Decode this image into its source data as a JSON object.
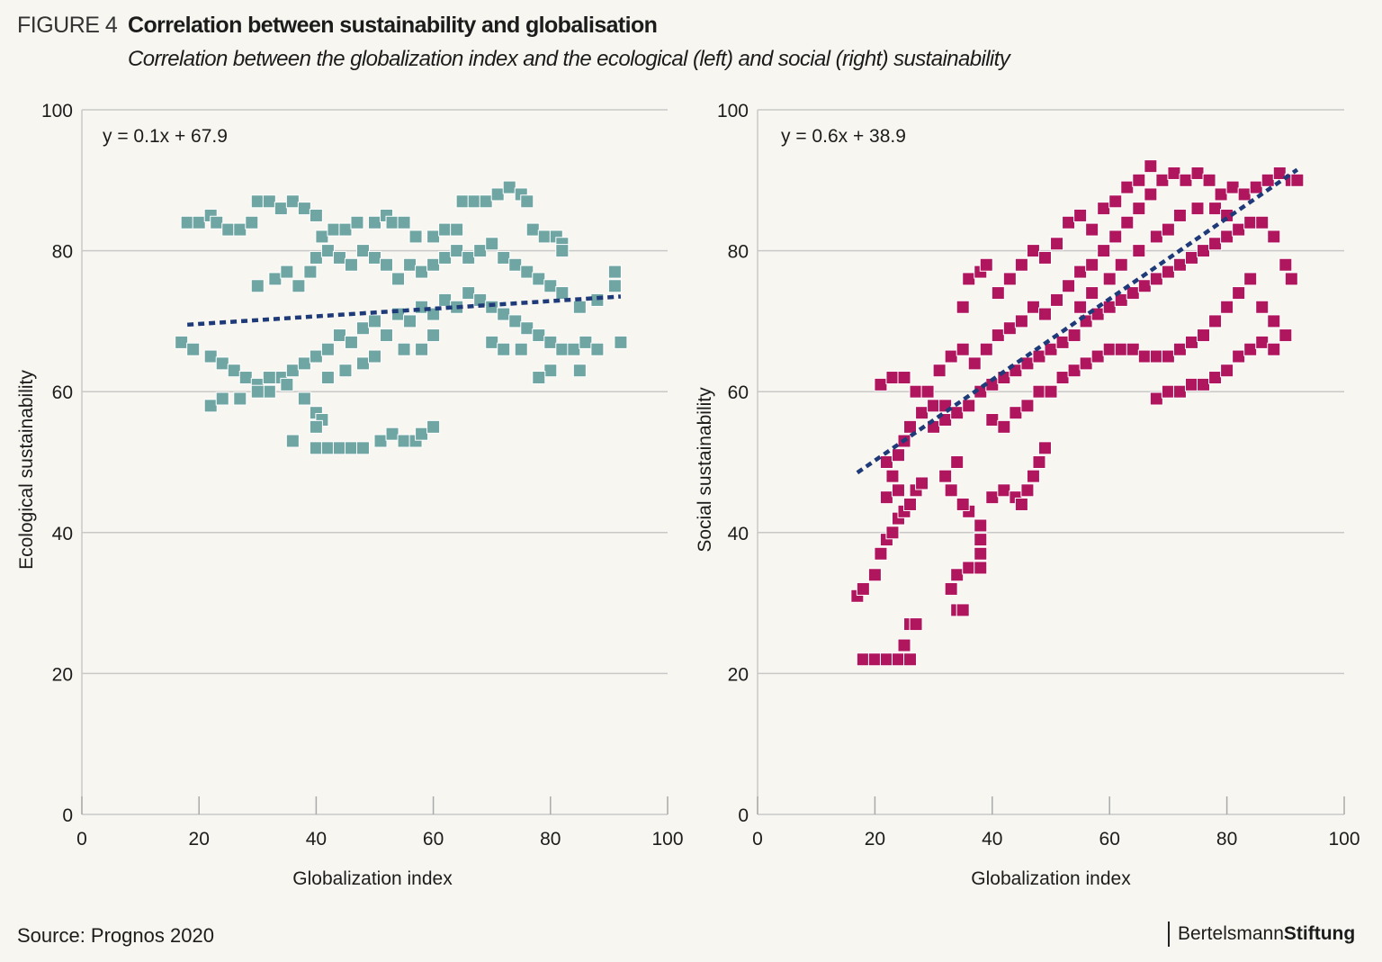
{
  "header": {
    "figure_label": "FIGURE 4",
    "title": "Correlation between sustainability and globalisation",
    "subtitle": "Correlation between the globalization index and the ecological (left) and social (right) sustainability"
  },
  "footer": {
    "source": "Source: Prognos 2020",
    "logo_regular": "Bertelsmann",
    "logo_bold": "Stiftung"
  },
  "colors": {
    "ecological": "#6fa6a3",
    "social": "#b0165e",
    "trend": "#1f3a78",
    "grid": "#c8c8c8"
  },
  "chart_data": [
    {
      "type": "scatter",
      "xlabel": "Globalization index",
      "ylabel": "Ecological sustainability",
      "xlim": [
        0,
        100
      ],
      "ylim": [
        0,
        100
      ],
      "xticks": [
        "0",
        "20",
        "40",
        "60",
        "80",
        "100"
      ],
      "yticks": [
        "0",
        "20",
        "40",
        "60",
        "80",
        "100"
      ],
      "grid": "horizontal",
      "equation": "y = 0.1x + 67.9",
      "trend_line": {
        "x": [
          18,
          92
        ],
        "y": [
          69.5,
          73.5
        ]
      },
      "points": [
        [
          18,
          84
        ],
        [
          20,
          84
        ],
        [
          22,
          85
        ],
        [
          23,
          84
        ],
        [
          25,
          83
        ],
        [
          27,
          83
        ],
        [
          29,
          84
        ],
        [
          30,
          87
        ],
        [
          32,
          87
        ],
        [
          34,
          86
        ],
        [
          36,
          87
        ],
        [
          38,
          86
        ],
        [
          40,
          85
        ],
        [
          41,
          82
        ],
        [
          43,
          83
        ],
        [
          45,
          83
        ],
        [
          47,
          84
        ],
        [
          50,
          84
        ],
        [
          52,
          85
        ],
        [
          53,
          84
        ],
        [
          55,
          84
        ],
        [
          57,
          82
        ],
        [
          60,
          82
        ],
        [
          62,
          83
        ],
        [
          64,
          83
        ],
        [
          65,
          87
        ],
        [
          67,
          87
        ],
        [
          69,
          87
        ],
        [
          71,
          88
        ],
        [
          73,
          89
        ],
        [
          75,
          88
        ],
        [
          76,
          87
        ],
        [
          77,
          83
        ],
        [
          79,
          82
        ],
        [
          81,
          82
        ],
        [
          82,
          81
        ],
        [
          82,
          80
        ],
        [
          30,
          75
        ],
        [
          33,
          76
        ],
        [
          35,
          77
        ],
        [
          37,
          75
        ],
        [
          39,
          77
        ],
        [
          40,
          79
        ],
        [
          42,
          80
        ],
        [
          44,
          79
        ],
        [
          46,
          78
        ],
        [
          48,
          80
        ],
        [
          50,
          79
        ],
        [
          52,
          78
        ],
        [
          54,
          76
        ],
        [
          56,
          78
        ],
        [
          58,
          77
        ],
        [
          60,
          78
        ],
        [
          62,
          79
        ],
        [
          64,
          80
        ],
        [
          66,
          79
        ],
        [
          68,
          80
        ],
        [
          70,
          81
        ],
        [
          72,
          79
        ],
        [
          74,
          78
        ],
        [
          76,
          77
        ],
        [
          78,
          76
        ],
        [
          80,
          75
        ],
        [
          82,
          74
        ],
        [
          85,
          72
        ],
        [
          88,
          73
        ],
        [
          91,
          77
        ],
        [
          91,
          75
        ],
        [
          17,
          67
        ],
        [
          19,
          66
        ],
        [
          22,
          65
        ],
        [
          24,
          64
        ],
        [
          26,
          63
        ],
        [
          28,
          62
        ],
        [
          30,
          61
        ],
        [
          32,
          60
        ],
        [
          34,
          62
        ],
        [
          36,
          63
        ],
        [
          38,
          64
        ],
        [
          40,
          65
        ],
        [
          42,
          66
        ],
        [
          44,
          68
        ],
        [
          46,
          67
        ],
        [
          48,
          69
        ],
        [
          50,
          70
        ],
        [
          52,
          68
        ],
        [
          54,
          71
        ],
        [
          56,
          70
        ],
        [
          58,
          72
        ],
        [
          60,
          71
        ],
        [
          62,
          73
        ],
        [
          64,
          72
        ],
        [
          66,
          74
        ],
        [
          68,
          73
        ],
        [
          70,
          72
        ],
        [
          72,
          71
        ],
        [
          74,
          70
        ],
        [
          76,
          69
        ],
        [
          78,
          68
        ],
        [
          80,
          67
        ],
        [
          82,
          66
        ],
        [
          84,
          66
        ],
        [
          86,
          67
        ],
        [
          88,
          66
        ],
        [
          92,
          67
        ],
        [
          85,
          63
        ],
        [
          80,
          63
        ],
        [
          78,
          62
        ],
        [
          22,
          58
        ],
        [
          24,
          59
        ],
        [
          27,
          59
        ],
        [
          30,
          60
        ],
        [
          32,
          62
        ],
        [
          35,
          61
        ],
        [
          38,
          59
        ],
        [
          40,
          57
        ],
        [
          41,
          56
        ],
        [
          40,
          55
        ],
        [
          42,
          62
        ],
        [
          45,
          63
        ],
        [
          48,
          64
        ],
        [
          50,
          65
        ],
        [
          55,
          66
        ],
        [
          58,
          66
        ],
        [
          60,
          68
        ],
        [
          70,
          67
        ],
        [
          72,
          66
        ],
        [
          75,
          66
        ],
        [
          36,
          53
        ],
        [
          40,
          52
        ],
        [
          42,
          52
        ],
        [
          44,
          52
        ],
        [
          46,
          52
        ],
        [
          48,
          52
        ],
        [
          51,
          53
        ],
        [
          53,
          54
        ],
        [
          55,
          53
        ],
        [
          57,
          53
        ],
        [
          58,
          54
        ],
        [
          60,
          55
        ]
      ]
    },
    {
      "type": "scatter",
      "xlabel": "Globalization index",
      "ylabel": "Social sustainability",
      "xlim": [
        0,
        100
      ],
      "ylim": [
        0,
        100
      ],
      "xticks": [
        "0",
        "20",
        "40",
        "60",
        "80",
        "100"
      ],
      "yticks": [
        "0",
        "20",
        "40",
        "60",
        "80",
        "100"
      ],
      "grid": "horizontal",
      "equation": "y = 0.6x + 38.9",
      "trend_line": {
        "x": [
          17,
          92
        ],
        "y": [
          48.5,
          91.5
        ]
      },
      "points": [
        [
          18,
          22
        ],
        [
          20,
          22
        ],
        [
          22,
          22
        ],
        [
          24,
          22
        ],
        [
          26,
          22
        ],
        [
          25,
          24
        ],
        [
          26,
          27
        ],
        [
          27,
          27
        ],
        [
          17,
          31
        ],
        [
          18,
          32
        ],
        [
          20,
          34
        ],
        [
          21,
          37
        ],
        [
          22,
          39
        ],
        [
          23,
          40
        ],
        [
          24,
          42
        ],
        [
          25,
          43
        ],
        [
          26,
          44
        ],
        [
          27,
          46
        ],
        [
          28,
          47
        ],
        [
          22,
          45
        ],
        [
          24,
          46
        ],
        [
          23,
          48
        ],
        [
          22,
          50
        ],
        [
          24,
          51
        ],
        [
          25,
          53
        ],
        [
          26,
          55
        ],
        [
          28,
          57
        ],
        [
          30,
          58
        ],
        [
          32,
          58
        ],
        [
          33,
          32
        ],
        [
          34,
          29
        ],
        [
          35,
          29
        ],
        [
          34,
          34
        ],
        [
          36,
          35
        ],
        [
          38,
          35
        ],
        [
          38,
          37
        ],
        [
          38,
          39
        ],
        [
          38,
          41
        ],
        [
          36,
          43
        ],
        [
          35,
          44
        ],
        [
          33,
          46
        ],
        [
          32,
          48
        ],
        [
          34,
          50
        ],
        [
          40,
          45
        ],
        [
          42,
          46
        ],
        [
          44,
          45
        ],
        [
          45,
          44
        ],
        [
          46,
          46
        ],
        [
          47,
          48
        ],
        [
          48,
          50
        ],
        [
          49,
          52
        ],
        [
          21,
          61
        ],
        [
          23,
          62
        ],
        [
          25,
          62
        ],
        [
          27,
          60
        ],
        [
          29,
          60
        ],
        [
          31,
          63
        ],
        [
          33,
          65
        ],
        [
          35,
          66
        ],
        [
          37,
          64
        ],
        [
          39,
          66
        ],
        [
          41,
          68
        ],
        [
          43,
          69
        ],
        [
          45,
          70
        ],
        [
          47,
          72
        ],
        [
          49,
          71
        ],
        [
          51,
          73
        ],
        [
          53,
          75
        ],
        [
          55,
          77
        ],
        [
          57,
          78
        ],
        [
          59,
          80
        ],
        [
          61,
          82
        ],
        [
          63,
          84
        ],
        [
          65,
          86
        ],
        [
          67,
          88
        ],
        [
          69,
          90
        ],
        [
          71,
          91
        ],
        [
          73,
          90
        ],
        [
          75,
          91
        ],
        [
          77,
          90
        ],
        [
          79,
          88
        ],
        [
          81,
          89
        ],
        [
          83,
          88
        ],
        [
          85,
          89
        ],
        [
          87,
          90
        ],
        [
          89,
          91
        ],
        [
          91,
          90
        ],
        [
          92,
          90
        ],
        [
          35,
          72
        ],
        [
          36,
          76
        ],
        [
          38,
          77
        ],
        [
          39,
          78
        ],
        [
          41,
          74
        ],
        [
          43,
          76
        ],
        [
          45,
          78
        ],
        [
          47,
          80
        ],
        [
          49,
          79
        ],
        [
          51,
          81
        ],
        [
          53,
          84
        ],
        [
          55,
          85
        ],
        [
          57,
          83
        ],
        [
          59,
          86
        ],
        [
          61,
          87
        ],
        [
          63,
          89
        ],
        [
          65,
          90
        ],
        [
          67,
          92
        ],
        [
          30,
          55
        ],
        [
          32,
          56
        ],
        [
          34,
          57
        ],
        [
          36,
          58
        ],
        [
          38,
          60
        ],
        [
          40,
          61
        ],
        [
          42,
          62
        ],
        [
          44,
          63
        ],
        [
          46,
          64
        ],
        [
          48,
          65
        ],
        [
          50,
          66
        ],
        [
          52,
          67
        ],
        [
          54,
          68
        ],
        [
          56,
          70
        ],
        [
          58,
          71
        ],
        [
          60,
          72
        ],
        [
          62,
          73
        ],
        [
          64,
          74
        ],
        [
          66,
          75
        ],
        [
          68,
          76
        ],
        [
          70,
          77
        ],
        [
          72,
          78
        ],
        [
          74,
          79
        ],
        [
          76,
          80
        ],
        [
          78,
          81
        ],
        [
          80,
          82
        ],
        [
          82,
          83
        ],
        [
          84,
          84
        ],
        [
          86,
          84
        ],
        [
          88,
          82
        ],
        [
          90,
          78
        ],
        [
          91,
          76
        ],
        [
          40,
          56
        ],
        [
          42,
          55
        ],
        [
          44,
          57
        ],
        [
          46,
          58
        ],
        [
          48,
          60
        ],
        [
          50,
          60
        ],
        [
          52,
          62
        ],
        [
          54,
          63
        ],
        [
          56,
          64
        ],
        [
          58,
          65
        ],
        [
          60,
          66
        ],
        [
          62,
          66
        ],
        [
          64,
          66
        ],
        [
          66,
          65
        ],
        [
          68,
          65
        ],
        [
          70,
          65
        ],
        [
          72,
          66
        ],
        [
          74,
          67
        ],
        [
          76,
          68
        ],
        [
          78,
          70
        ],
        [
          80,
          72
        ],
        [
          82,
          74
        ],
        [
          84,
          76
        ],
        [
          86,
          72
        ],
        [
          88,
          70
        ],
        [
          90,
          68
        ],
        [
          68,
          59
        ],
        [
          70,
          60
        ],
        [
          72,
          60
        ],
        [
          74,
          61
        ],
        [
          76,
          61
        ],
        [
          78,
          62
        ],
        [
          80,
          63
        ],
        [
          82,
          65
        ],
        [
          84,
          66
        ],
        [
          86,
          67
        ],
        [
          88,
          66
        ],
        [
          55,
          72
        ],
        [
          57,
          74
        ],
        [
          60,
          76
        ],
        [
          62,
          78
        ],
        [
          65,
          80
        ],
        [
          68,
          82
        ],
        [
          70,
          83
        ],
        [
          72,
          85
        ],
        [
          75,
          86
        ],
        [
          78,
          86
        ],
        [
          80,
          85
        ]
      ]
    }
  ]
}
